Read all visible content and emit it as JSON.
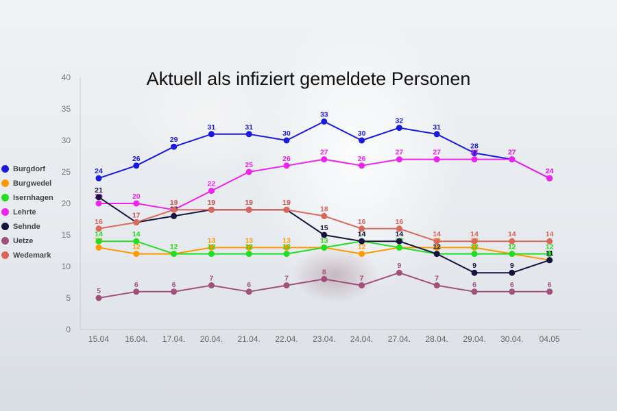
{
  "chart_data": {
    "type": "line",
    "title": "Aktuell als infiziert gemeldete Personen",
    "xlabel": "",
    "ylabel": "",
    "ylim": [
      0,
      40
    ],
    "yticks": [
      0,
      5,
      10,
      15,
      20,
      25,
      30,
      35,
      40
    ],
    "categories": [
      "15.04",
      "16.04.",
      "17.04.",
      "20.04.",
      "21.04.",
      "22.04.",
      "23.04.",
      "24.04.",
      "27.04.",
      "28.04.",
      "29.04.",
      "30.04.",
      "04.05"
    ],
    "legend_position": "left",
    "series": [
      {
        "name": "Burgdorf",
        "color": "#1a1adb",
        "values": [
          24,
          26,
          29,
          31,
          31,
          30,
          33,
          30,
          32,
          31,
          28,
          27,
          24
        ]
      },
      {
        "name": "Burgwedel",
        "color": "#ff9900",
        "values": [
          13,
          12,
          12,
          13,
          13,
          13,
          13,
          12,
          13,
          13,
          13,
          12,
          11
        ]
      },
      {
        "name": "Isernhagen",
        "color": "#22dd22",
        "values": [
          14,
          14,
          12,
          12,
          12,
          12,
          13,
          14,
          13,
          12,
          12,
          12,
          12
        ]
      },
      {
        "name": "Lehrte",
        "color": "#ee22ee",
        "values": [
          20,
          20,
          19,
          22,
          25,
          26,
          27,
          26,
          27,
          27,
          27,
          27,
          24
        ]
      },
      {
        "name": "Sehnde",
        "color": "#14143f",
        "values": [
          21,
          17,
          18,
          19,
          19,
          19,
          15,
          14,
          14,
          12,
          9,
          9,
          11
        ]
      },
      {
        "name": "Uetze",
        "color": "#a0507a",
        "values": [
          5,
          6,
          6,
          7,
          6,
          7,
          8,
          7,
          9,
          7,
          6,
          6,
          6
        ]
      },
      {
        "name": "Wedemark",
        "color": "#d9675c",
        "values": [
          16,
          17,
          19,
          19,
          19,
          19,
          18,
          16,
          16,
          14,
          14,
          14,
          14
        ]
      }
    ]
  }
}
